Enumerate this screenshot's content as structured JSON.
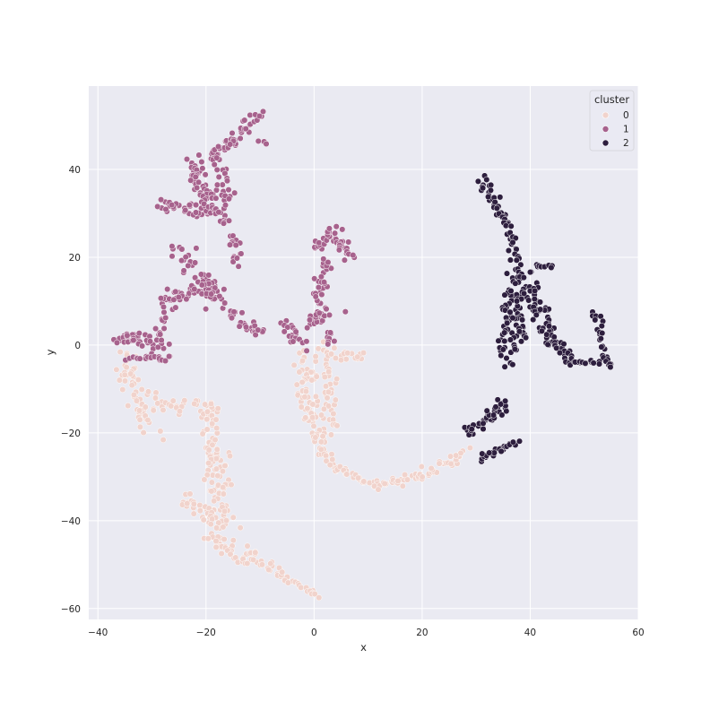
{
  "chart_data": {
    "type": "scatter",
    "xlabel": "x",
    "ylabel": "y",
    "xlim": [
      -41.7,
      60
    ],
    "ylim": [
      -62.5,
      59
    ],
    "xticks": [
      -40,
      -20,
      0,
      20,
      40,
      60
    ],
    "yticks": [
      -60,
      -40,
      -20,
      0,
      20,
      40
    ],
    "xtick_labels": [
      "−40",
      "−20",
      "0",
      "20",
      "40",
      "60"
    ],
    "ytick_labels": [
      "−60",
      "−40",
      "−20",
      "0",
      "20",
      "40"
    ],
    "grid": true,
    "legend": {
      "title": "cluster",
      "placement": "top-right",
      "entries": [
        "0",
        "1",
        "2"
      ]
    },
    "colors": {
      "0": "#f1d3cc",
      "1": "#a7628d",
      "2": "#2d1e3e",
      "plot_background": "#eaeaf2",
      "grid": "#ffffff",
      "marker_edge": "#ffffff"
    },
    "series": [
      {
        "name": "0",
        "segments": [
          {
            "from": [
              -35.5,
              -3
            ],
            "to": [
              -30,
              -19
            ],
            "n": 60,
            "spread": 2.2
          },
          {
            "from": [
              -29,
              -13
            ],
            "to": [
              -18,
              -15
            ],
            "n": 30,
            "spread": 1.4
          },
          {
            "from": [
              -19,
              -14
            ],
            "to": [
              -19,
              -30
            ],
            "n": 40,
            "spread": 1.5
          },
          {
            "from": [
              -17.5,
              -24
            ],
            "to": [
              -17,
              -45
            ],
            "n": 60,
            "spread": 2.0
          },
          {
            "from": [
              -24,
              -35
            ],
            "to": [
              -18,
              -40
            ],
            "n": 30,
            "spread": 1.4
          },
          {
            "from": [
              -20,
              -44
            ],
            "to": [
              -12,
              -50
            ],
            "n": 30,
            "spread": 1.2
          },
          {
            "from": [
              -12,
              -47
            ],
            "to": [
              -4,
              -54
            ],
            "n": 30,
            "spread": 1.2
          },
          {
            "from": [
              -4,
              -54
            ],
            "to": [
              1,
              -57
            ],
            "n": 15,
            "spread": 0.6
          },
          {
            "from": [
              -2,
              -2
            ],
            "to": [
              0,
              -19
            ],
            "n": 40,
            "spread": 1.3
          },
          {
            "from": [
              2,
              0
            ],
            "to": [
              3,
              -20
            ],
            "n": 50,
            "spread": 1.5
          },
          {
            "from": [
              4,
              -3
            ],
            "to": [
              9,
              -2
            ],
            "n": 15,
            "spread": 1.0
          },
          {
            "from": [
              -3,
              -7
            ],
            "to": [
              -1,
              -17
            ],
            "n": 15,
            "spread": 0.9
          },
          {
            "from": [
              0,
              -20
            ],
            "to": [
              4,
              -28
            ],
            "n": 30,
            "spread": 1.3
          },
          {
            "from": [
              4,
              -28
            ],
            "to": [
              12,
              -32
            ],
            "n": 25,
            "spread": 0.8
          },
          {
            "from": [
              12,
              -32
            ],
            "to": [
              20,
              -30
            ],
            "n": 25,
            "spread": 0.8
          },
          {
            "from": [
              20,
              -30
            ],
            "to": [
              28,
              -24
            ],
            "n": 30,
            "spread": 1.0
          }
        ]
      },
      {
        "name": "1",
        "segments": [
          {
            "from": [
              -37,
              2
            ],
            "to": [
              -29,
              0
            ],
            "n": 35,
            "spread": 1.5
          },
          {
            "from": [
              -34,
              -3
            ],
            "to": [
              -27,
              -3
            ],
            "n": 20,
            "spread": 1.0
          },
          {
            "from": [
              -29,
              0
            ],
            "to": [
              -27,
              12
            ],
            "n": 25,
            "spread": 1.4
          },
          {
            "from": [
              -27,
              11
            ],
            "to": [
              -18,
              13
            ],
            "n": 30,
            "spread": 1.3
          },
          {
            "from": [
              -20,
              15
            ],
            "to": [
              -14,
              5
            ],
            "n": 30,
            "spread": 1.3
          },
          {
            "from": [
              -14,
              5
            ],
            "to": [
              -9,
              3
            ],
            "n": 20,
            "spread": 1.0
          },
          {
            "from": [
              -28,
              32
            ],
            "to": [
              -20,
              30
            ],
            "n": 35,
            "spread": 1.5
          },
          {
            "from": [
              -25,
              22
            ],
            "to": [
              -19,
              10
            ],
            "n": 35,
            "spread": 1.8
          },
          {
            "from": [
              -23,
              41
            ],
            "to": [
              -19,
              33
            ],
            "n": 40,
            "spread": 1.5
          },
          {
            "from": [
              -20,
              32
            ],
            "to": [
              -16,
              28
            ],
            "n": 25,
            "spread": 1.3
          },
          {
            "from": [
              -20,
              42
            ],
            "to": [
              -14,
              48
            ],
            "n": 35,
            "spread": 1.4
          },
          {
            "from": [
              -14,
              48
            ],
            "to": [
              -10,
              53
            ],
            "n": 20,
            "spread": 0.9
          },
          {
            "from": [
              -17,
              40
            ],
            "to": [
              -16,
              32
            ],
            "n": 20,
            "spread": 1.2
          },
          {
            "from": [
              -15,
              25
            ],
            "to": [
              -14,
              19
            ],
            "n": 15,
            "spread": 1.0
          },
          {
            "from": [
              -10,
              46.5
            ],
            "to": [
              -9,
              46
            ],
            "n": 3,
            "spread": 0.4
          },
          {
            "from": [
              -6,
              5
            ],
            "to": [
              -2,
              0
            ],
            "n": 20,
            "spread": 1.0
          },
          {
            "from": [
              -1,
              5
            ],
            "to": [
              3,
              7
            ],
            "n": 25,
            "spread": 1.2
          },
          {
            "from": [
              1,
              10
            ],
            "to": [
              2,
              20
            ],
            "n": 30,
            "spread": 1.1
          },
          {
            "from": [
              0,
              22
            ],
            "to": [
              4,
              27
            ],
            "n": 20,
            "spread": 1.2
          },
          {
            "from": [
              4,
              24
            ],
            "to": [
              7,
              20
            ],
            "n": 20,
            "spread": 1.0
          },
          {
            "from": [
              3,
              3
            ],
            "to": [
              3,
              0
            ],
            "n": 8,
            "spread": 0.7
          }
        ]
      },
      {
        "name": "2",
        "segments": [
          {
            "from": [
              31,
              38
            ],
            "to": [
              36,
              27
            ],
            "n": 35,
            "spread": 0.9
          },
          {
            "from": [
              36,
              27
            ],
            "to": [
              38,
              18
            ],
            "n": 20,
            "spread": 1.0
          },
          {
            "from": [
              38,
              18
            ],
            "to": [
              38,
              0
            ],
            "n": 50,
            "spread": 1.7
          },
          {
            "from": [
              36,
              12
            ],
            "to": [
              36,
              -4
            ],
            "n": 45,
            "spread": 1.4
          },
          {
            "from": [
              40,
              14
            ],
            "to": [
              43,
              2
            ],
            "n": 40,
            "spread": 1.8
          },
          {
            "from": [
              41,
              18
            ],
            "to": [
              44,
              18
            ],
            "n": 8,
            "spread": 0.6
          },
          {
            "from": [
              43,
              2
            ],
            "to": [
              48,
              -4
            ],
            "n": 30,
            "spread": 1.2
          },
          {
            "from": [
              48,
              -4
            ],
            "to": [
              53,
              -4
            ],
            "n": 15,
            "spread": 0.6
          },
          {
            "from": [
              52,
              8
            ],
            "to": [
              54,
              -3
            ],
            "n": 20,
            "spread": 0.8
          },
          {
            "from": [
              54,
              -3
            ],
            "to": [
              55,
              -5
            ],
            "n": 8,
            "spread": 0.5
          },
          {
            "from": [
              29,
              -20
            ],
            "to": [
              35,
              -13
            ],
            "n": 40,
            "spread": 1.1
          },
          {
            "from": [
              31,
              -26
            ],
            "to": [
              37,
              -22
            ],
            "n": 25,
            "spread": 0.7
          }
        ]
      }
    ]
  }
}
